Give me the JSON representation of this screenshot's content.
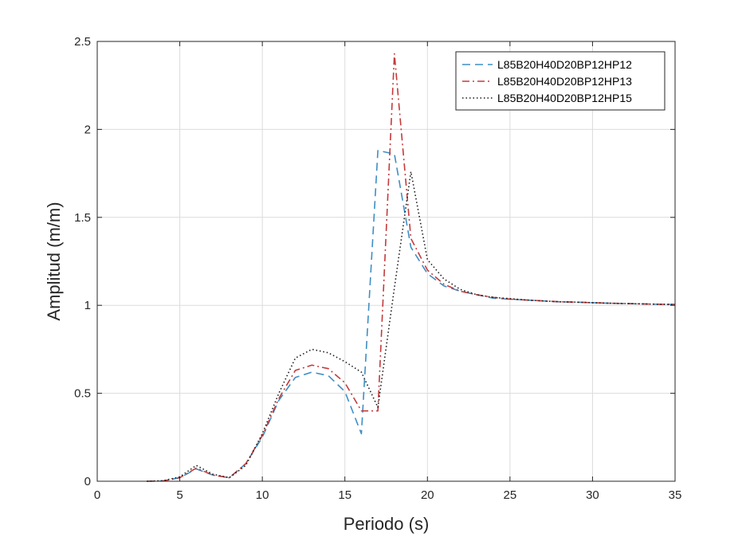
{
  "chart_data": {
    "type": "line",
    "title": "",
    "xlabel": "Periodo (s)",
    "ylabel": "Amplitud (m/m)",
    "xlim": [
      0,
      35
    ],
    "ylim": [
      0,
      2.5
    ],
    "xticks": [
      0,
      5,
      10,
      15,
      20,
      25,
      30,
      35
    ],
    "yticks": [
      0,
      0.5,
      1,
      1.5,
      2,
      2.5
    ],
    "xtick_labels": [
      "0",
      "5",
      "10",
      "15",
      "20",
      "25",
      "30",
      "35"
    ],
    "ytick_labels": [
      "0",
      "0.5",
      "1",
      "1.5",
      "2",
      "2.5"
    ],
    "grid": true,
    "legend_position": "top-right",
    "series": [
      {
        "name": "L85B20H40D20BP12HP12",
        "color": "#3e8fc4",
        "dash": "dashed",
        "x": [
          3,
          4,
          5,
          6,
          7,
          8,
          9,
          10,
          11,
          12,
          13,
          14,
          15,
          16,
          17,
          18,
          19,
          20,
          21,
          22,
          23,
          24,
          25,
          26,
          27,
          28,
          29,
          30,
          31,
          32,
          33,
          34,
          35
        ],
        "y": [
          0,
          0.002,
          0.02,
          0.07,
          0.035,
          0.02,
          0.1,
          0.25,
          0.46,
          0.59,
          0.62,
          0.6,
          0.51,
          0.27,
          1.88,
          1.86,
          1.33,
          1.18,
          1.11,
          1.08,
          1.06,
          1.04,
          1.035,
          1.03,
          1.025,
          1.02,
          1.018,
          1.015,
          1.012,
          1.01,
          1.008,
          1.006,
          1.005
        ]
      },
      {
        "name": "L85B20H40D20BP12HP13",
        "color": "#c43b3b",
        "dash": "dash-dot",
        "x": [
          3,
          4,
          5,
          6,
          7,
          8,
          9,
          10,
          11,
          12,
          13,
          14,
          15,
          16,
          17,
          18,
          19,
          20,
          21,
          22,
          23,
          24,
          25,
          26,
          27,
          28,
          29,
          30,
          31,
          32,
          33,
          34,
          35
        ],
        "y": [
          0,
          0.002,
          0.02,
          0.075,
          0.035,
          0.02,
          0.1,
          0.26,
          0.47,
          0.63,
          0.66,
          0.64,
          0.56,
          0.4,
          0.4,
          2.43,
          1.38,
          1.2,
          1.12,
          1.08,
          1.06,
          1.045,
          1.035,
          1.03,
          1.025,
          1.02,
          1.018,
          1.015,
          1.012,
          1.01,
          1.008,
          1.006,
          1.005
        ]
      },
      {
        "name": "L85B20H40D20BP12HP15",
        "color": "#1a1a1a",
        "dash": "dotted",
        "x": [
          3,
          4,
          5,
          6,
          7,
          8,
          9,
          10,
          11,
          12,
          13,
          14,
          15,
          16,
          17,
          18,
          19,
          20,
          21,
          22,
          23,
          24,
          25,
          26,
          27,
          28,
          29,
          30,
          31,
          32,
          33,
          34,
          35
        ],
        "y": [
          0,
          0.003,
          0.025,
          0.09,
          0.04,
          0.02,
          0.09,
          0.27,
          0.5,
          0.7,
          0.75,
          0.73,
          0.68,
          0.62,
          0.42,
          1.1,
          1.76,
          1.26,
          1.15,
          1.09,
          1.06,
          1.045,
          1.038,
          1.03,
          1.025,
          1.02,
          1.018,
          1.015,
          1.012,
          1.01,
          1.008,
          1.006,
          1.005
        ]
      }
    ]
  }
}
